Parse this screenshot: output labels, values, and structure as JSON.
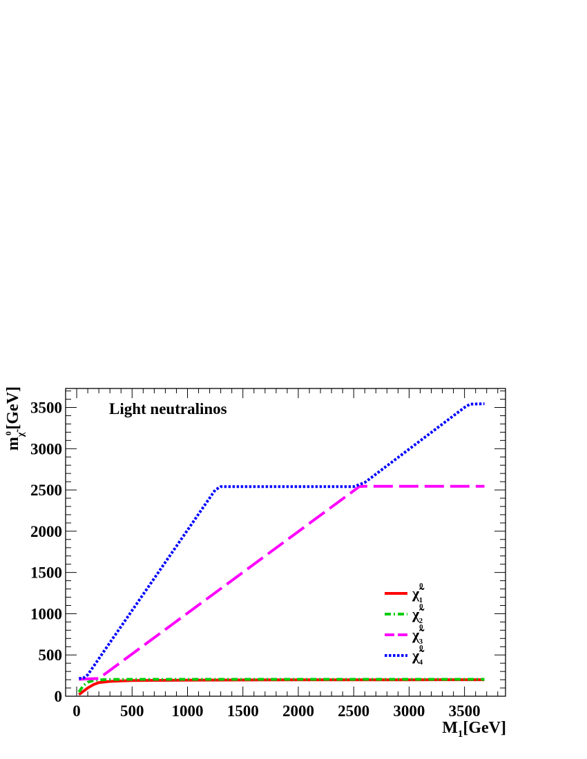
{
  "chart_data": {
    "type": "line",
    "annotation": "Light neutralinos",
    "xlabel": {
      "main": "M",
      "sub": "1",
      "unit": "[GeV]"
    },
    "ylabel": {
      "main": "m",
      "sub": "χ̃",
      "sup": "0",
      "unit": "[GeV]"
    },
    "xlim": [
      -100,
      3870
    ],
    "ylim": [
      0,
      3730
    ],
    "xticks": [
      0,
      500,
      1000,
      1500,
      2000,
      2500,
      3000,
      3500
    ],
    "xtick_labels": [
      "0",
      "500",
      "1000",
      "1500",
      "2000",
      "2500",
      "3000",
      "3500"
    ],
    "yticks": [
      0,
      500,
      1000,
      1500,
      2000,
      2500,
      3000,
      3500
    ],
    "ytick_labels": [
      "0",
      "500",
      "1000",
      "1500",
      "2000",
      "2500",
      "3000",
      "3500"
    ],
    "grid": false,
    "legend_position": "lower-right",
    "series": [
      {
        "name": "χ̃",
        "sup": "0",
        "sub": "1",
        "color": "#ff0000",
        "dash": "solid",
        "x": [
          20,
          60,
          100,
          150,
          200,
          300,
          500,
          1000,
          2000,
          3000,
          3680
        ],
        "y": [
          20,
          60,
          100,
          140,
          165,
          180,
          190,
          195,
          198,
          199,
          200
        ]
      },
      {
        "name": "χ̃",
        "sup": "0",
        "sub": "2",
        "color": "#00cc00",
        "dash": "dashdot",
        "x": [
          20,
          60,
          100,
          150,
          200,
          300,
          500,
          1000,
          2000,
          3000,
          3680
        ],
        "y": [
          50,
          130,
          170,
          190,
          198,
          203,
          205,
          205,
          205,
          205,
          205
        ]
      },
      {
        "name": "χ̃",
        "sup": "0",
        "sub": "3",
        "color": "#ff00ff",
        "dash": "longdash",
        "x": [
          20,
          100,
          200,
          2550,
          2600,
          3680
        ],
        "y": [
          205,
          210,
          215,
          2540,
          2545,
          2545
        ]
      },
      {
        "name": "χ̃",
        "sup": "0",
        "sub": "4",
        "color": "#0000ff",
        "dash": "dotted",
        "x": [
          20,
          60,
          100,
          1250,
          1300,
          2500,
          2600,
          3500,
          3550,
          3680
        ],
        "y": [
          215,
          220,
          260,
          2500,
          2540,
          2540,
          2590,
          3500,
          3540,
          3545
        ]
      }
    ]
  }
}
